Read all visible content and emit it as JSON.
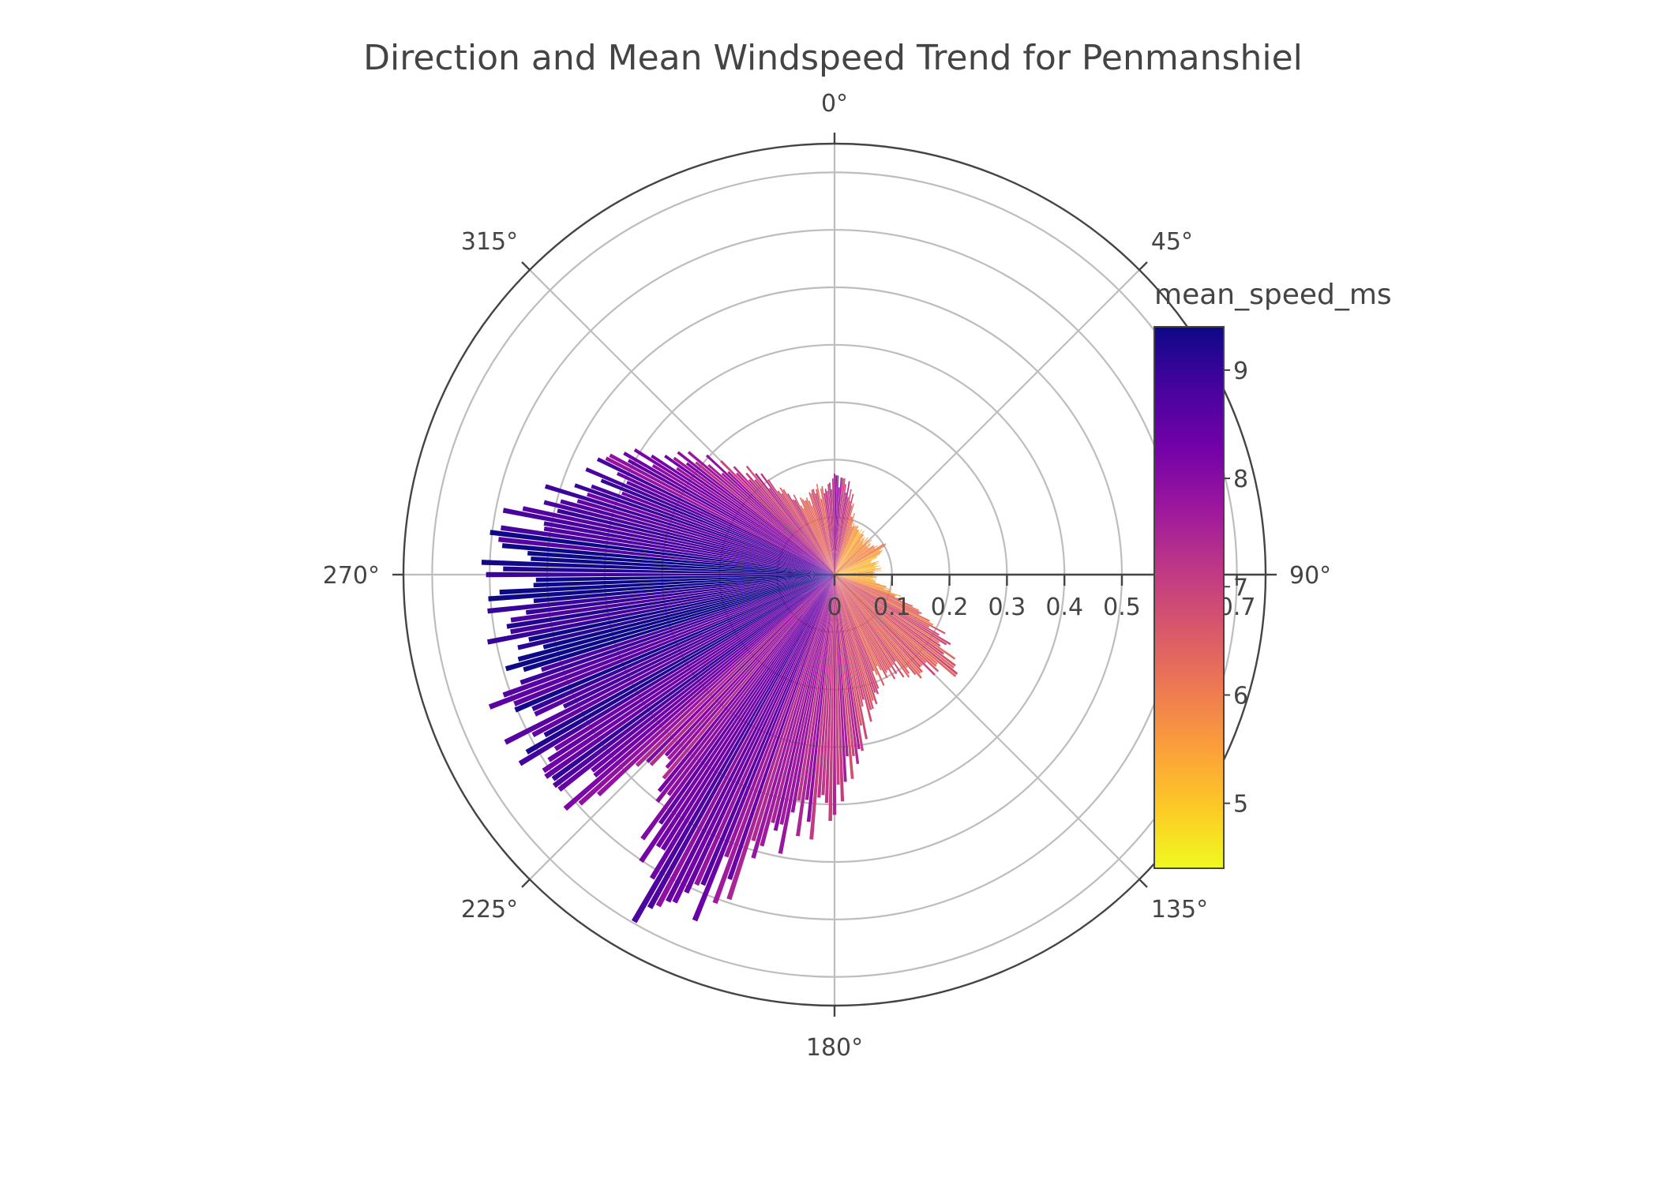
{
  "chart_data": {
    "type": "barpolar",
    "title": "Direction and Mean Windspeed Trend for Penmanshiel",
    "angular_axis": {
      "direction": "clockwise",
      "rotation_zero_at": "top",
      "tick_labels": [
        "0°",
        "45°",
        "90°",
        "135°",
        "180°",
        "225°",
        "270°",
        "315°"
      ]
    },
    "radial_axis": {
      "range": [
        0,
        0.75
      ],
      "tick_labels": [
        "0",
        "0.1",
        "0.2",
        "0.3",
        "0.4",
        "0.5",
        "0.6",
        "0.7"
      ],
      "tick_values": [
        0,
        0.1,
        0.2,
        0.3,
        0.4,
        0.5,
        0.6,
        0.7
      ],
      "angle_deg": 90
    },
    "colorbar": {
      "title": "mean_speed_ms",
      "range": [
        4.4,
        9.4
      ],
      "tick_labels": [
        "5",
        "6",
        "7",
        "8",
        "9"
      ],
      "tick_values": [
        5,
        6,
        7,
        8,
        9
      ],
      "colorscale": [
        "#f0f921",
        "#fdca26",
        "#fb9f3a",
        "#ed7953",
        "#d8576b",
        "#bd3786",
        "#9c179e",
        "#7201a8",
        "#46039f",
        "#0d0887"
      ]
    },
    "bin_width_deg": 1,
    "profile": {
      "direction_deg": [
        0,
        10,
        20,
        30,
        40,
        50,
        60,
        70,
        80,
        90,
        100,
        110,
        120,
        130,
        140,
        150,
        160,
        170,
        180,
        190,
        200,
        205,
        210,
        215,
        220,
        225,
        230,
        240,
        250,
        260,
        270,
        280,
        290,
        300,
        310,
        320,
        330,
        340,
        350,
        360
      ],
      "frequency": [
        0.17,
        0.15,
        0.09,
        0.09,
        0.08,
        0.08,
        0.1,
        0.07,
        0.08,
        0.07,
        0.07,
        0.12,
        0.22,
        0.26,
        0.22,
        0.19,
        0.2,
        0.27,
        0.41,
        0.45,
        0.57,
        0.63,
        0.66,
        0.54,
        0.42,
        0.5,
        0.58,
        0.58,
        0.6,
        0.56,
        0.57,
        0.55,
        0.45,
        0.39,
        0.3,
        0.23,
        0.15,
        0.13,
        0.15,
        0.17
      ],
      "mean_speed_ms": [
        7.6,
        7.0,
        6.0,
        5.6,
        5.5,
        5.6,
        5.7,
        5.2,
        5.3,
        5.5,
        5.4,
        5.9,
        6.4,
        6.6,
        6.5,
        6.4,
        6.6,
        7.0,
        7.4,
        7.6,
        8.0,
        8.3,
        8.4,
        8.2,
        7.7,
        7.8,
        8.4,
        8.9,
        9.1,
        9.2,
        9.3,
        9.0,
        8.6,
        8.2,
        7.6,
        7.2,
        6.8,
        6.4,
        6.6,
        7.6
      ]
    }
  }
}
